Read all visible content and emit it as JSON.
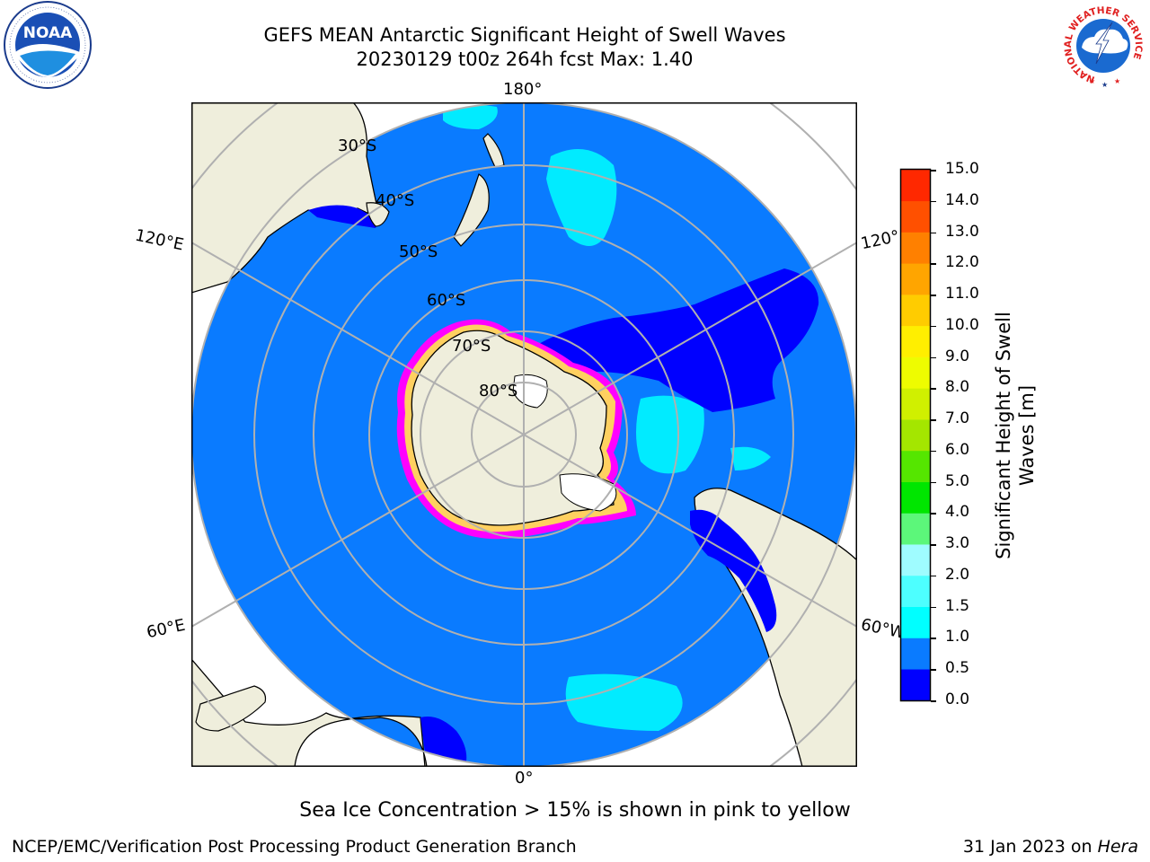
{
  "header": {
    "title_line1": "GEFS MEAN Antarctic Significant Height of Swell Waves",
    "title_line2": "20230129 t00z 264h fcst   Max: 1.40"
  },
  "logos": {
    "noaa_text": "NOAA",
    "noaa_ring_text": "NATIONAL OCEANIC AND ATMOSPHERIC ADMINISTRATION · U.S. DEPARTMENT OF COMMERCE",
    "nws_ring_text": "NATIONAL WEATHER SERVICE"
  },
  "map": {
    "longitude_labels": [
      "180°",
      "120°E",
      "120°",
      "60°E",
      "60°W",
      "0°"
    ],
    "latitude_labels": [
      "30°S",
      "40°S",
      "50°S",
      "60°S",
      "70°S",
      "80°S"
    ],
    "colors": {
      "ocean": "#0a7bff",
      "land": "#efeedc",
      "ice_sheet_fill": "#efeedc",
      "low_swell": "#0000ff",
      "mid_swell": "#00ffff",
      "ice_pink": "#ff00ff",
      "ice_yellow": "#ffd060"
    }
  },
  "colorbar": {
    "title": "Significant Height of Swell Waves [m]",
    "ticks": [
      "15.0",
      "14.0",
      "13.0",
      "12.0",
      "11.0",
      "10.0",
      "9.0",
      "8.0",
      "7.0",
      "6.0",
      "5.0",
      "4.0",
      "3.0",
      "2.0",
      "1.5",
      "1.0",
      "0.5",
      "0.0"
    ],
    "colors_bottom_to_top": [
      "#0000ff",
      "#0a7bff",
      "#00ffff",
      "#4dffff",
      "#9ffcff",
      "#5cf77a",
      "#00e600",
      "#55e600",
      "#a4e600",
      "#d0f000",
      "#eefc00",
      "#ffef00",
      "#ffcc00",
      "#ffa500",
      "#ff8000",
      "#ff5000",
      "#ff2800"
    ]
  },
  "footer": {
    "note": "Sea Ice Concentration > 15% is shown in pink to yellow",
    "left": "NCEP/EMC/Verification Post Processing Product Generation Branch",
    "right_date": "31 Jan 2023 on",
    "right_host": "Hera"
  }
}
